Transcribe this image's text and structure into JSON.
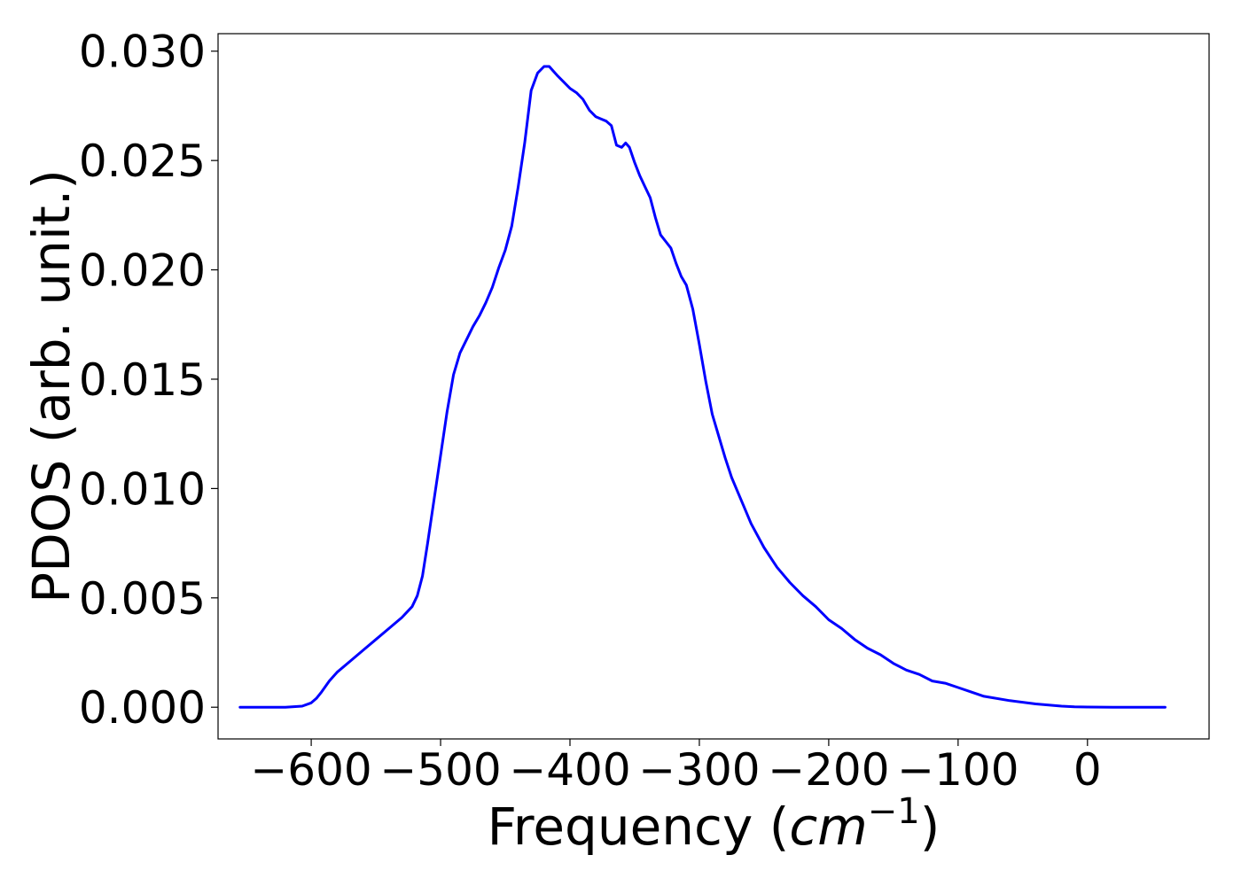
{
  "chart_data": {
    "type": "line",
    "title": "",
    "xlabel": "Frequency ",
    "xlabel_unit_base": "cm",
    "xlabel_unit_exp": "−1",
    "ylabel": "PDOS (arb. unit.)",
    "xlim": [
      -672,
      94
    ],
    "ylim": [
      -0.00145,
      0.0308
    ],
    "x_ticks": [
      -600,
      -500,
      -400,
      -300,
      -200,
      -100,
      0
    ],
    "x_tick_labels": [
      "−600",
      "−500",
      "−400",
      "−300",
      "−200",
      "−100",
      "0"
    ],
    "y_ticks": [
      0.0,
      0.005,
      0.01,
      0.015,
      0.02,
      0.025,
      0.03
    ],
    "y_tick_labels": [
      "0.000",
      "0.005",
      "0.010",
      "0.015",
      "0.020",
      "0.025",
      "0.030"
    ],
    "grid": false,
    "legend": false,
    "series": [
      {
        "color": "#0000ff",
        "x": [
          -655,
          -620,
          -607,
          -600,
          -596,
          -592,
          -586,
          -580,
          -570,
          -560,
          -550,
          -540,
          -530,
          -522,
          -518,
          -514,
          -510,
          -505,
          -500,
          -495,
          -490,
          -485,
          -480,
          -475,
          -470,
          -465,
          -460,
          -455,
          -450,
          -445,
          -440,
          -435,
          -430,
          -425,
          -420,
          -416,
          -413,
          -410,
          -405,
          -400,
          -395,
          -390,
          -385,
          -380,
          -376,
          -372,
          -368,
          -364,
          -360,
          -357,
          -354,
          -350,
          -346,
          -342,
          -338,
          -334,
          -330,
          -326,
          -322,
          -318,
          -314,
          -310,
          -305,
          -300,
          -295,
          -290,
          -285,
          -280,
          -275,
          -270,
          -265,
          -260,
          -250,
          -240,
          -230,
          -220,
          -210,
          -200,
          -190,
          -180,
          -170,
          -160,
          -150,
          -140,
          -130,
          -120,
          -110,
          -100,
          -90,
          -80,
          -60,
          -40,
          -20,
          -10,
          0,
          20,
          40,
          60
        ],
        "y": [
          0.0,
          0.0,
          5e-05,
          0.0002,
          0.0004,
          0.0007,
          0.0012,
          0.0016,
          0.0021,
          0.0026,
          0.0031,
          0.0036,
          0.0041,
          0.0046,
          0.0051,
          0.006,
          0.0075,
          0.0095,
          0.0115,
          0.0135,
          0.0152,
          0.0162,
          0.0168,
          0.0174,
          0.0179,
          0.0185,
          0.0192,
          0.0201,
          0.0209,
          0.022,
          0.0238,
          0.0258,
          0.0282,
          0.029,
          0.0293,
          0.0293,
          0.0291,
          0.0289,
          0.0286,
          0.0283,
          0.0281,
          0.0278,
          0.0273,
          0.027,
          0.0269,
          0.0268,
          0.0266,
          0.0257,
          0.0256,
          0.0258,
          0.0256,
          0.0249,
          0.0243,
          0.0238,
          0.0233,
          0.0224,
          0.0216,
          0.0213,
          0.021,
          0.0203,
          0.0197,
          0.0193,
          0.0182,
          0.0166,
          0.0149,
          0.0134,
          0.0124,
          0.0114,
          0.0105,
          0.0098,
          0.0091,
          0.0084,
          0.0073,
          0.0064,
          0.0057,
          0.0051,
          0.0046,
          0.004,
          0.0036,
          0.0031,
          0.0027,
          0.0024,
          0.002,
          0.0017,
          0.0015,
          0.0012,
          0.0011,
          0.0009,
          0.0007,
          0.0005,
          0.0003,
          0.00015,
          5e-05,
          2e-05,
          1e-05,
          0.0,
          0.0,
          0.0
        ]
      }
    ]
  }
}
